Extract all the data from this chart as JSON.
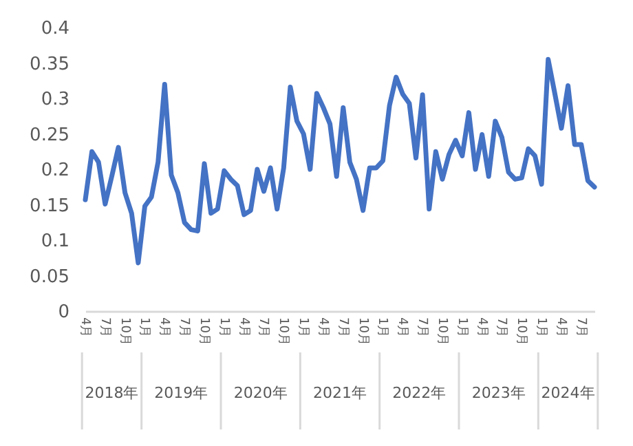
{
  "chart_data": {
    "type": "line",
    "x": [
      "2018-04",
      "2018-05",
      "2018-06",
      "2018-07",
      "2018-08",
      "2018-09",
      "2018-10",
      "2018-11",
      "2018-12",
      "2019-01",
      "2019-02",
      "2019-03",
      "2019-04",
      "2019-05",
      "2019-06",
      "2019-07",
      "2019-08",
      "2019-09",
      "2019-10",
      "2019-11",
      "2019-12",
      "2020-01",
      "2020-02",
      "2020-03",
      "2020-04",
      "2020-05",
      "2020-06",
      "2020-07",
      "2020-08",
      "2020-09",
      "2020-10",
      "2020-11",
      "2020-12",
      "2021-01",
      "2021-02",
      "2021-03",
      "2021-04",
      "2021-05",
      "2021-06",
      "2021-07",
      "2021-08",
      "2021-09",
      "2021-10",
      "2021-11",
      "2021-12",
      "2022-01",
      "2022-02",
      "2022-03",
      "2022-04",
      "2022-05",
      "2022-06",
      "2022-07",
      "2022-08",
      "2022-09",
      "2022-10",
      "2022-11",
      "2022-12",
      "2023-01",
      "2023-02",
      "2023-03",
      "2023-04",
      "2023-05",
      "2023-06",
      "2023-07",
      "2023-08",
      "2023-09",
      "2023-10",
      "2023-11",
      "2023-12",
      "2024-01",
      "2024-02",
      "2024-03",
      "2024-04",
      "2024-05",
      "2024-06",
      "2024-07",
      "2024-08",
      "2024-09"
    ],
    "series": [
      {
        "color": "#4472c4",
        "values": [
          0.157,
          0.225,
          0.21,
          0.151,
          0.19,
          0.231,
          0.167,
          0.138,
          0.068,
          0.148,
          0.161,
          0.21,
          0.32,
          0.192,
          0.167,
          0.125,
          0.115,
          0.113,
          0.208,
          0.138,
          0.144,
          0.198,
          0.186,
          0.177,
          0.136,
          0.142,
          0.2,
          0.169,
          0.202,
          0.144,
          0.202,
          0.316,
          0.268,
          0.25,
          0.2,
          0.307,
          0.287,
          0.264,
          0.19,
          0.287,
          0.21,
          0.186,
          0.142,
          0.202,
          0.202,
          0.212,
          0.29,
          0.33,
          0.306,
          0.293,
          0.216,
          0.305,
          0.144,
          0.225,
          0.186,
          0.221,
          0.241,
          0.219,
          0.28,
          0.2,
          0.249,
          0.19,
          0.268,
          0.245,
          0.196,
          0.186,
          0.188,
          0.229,
          0.219,
          0.179,
          0.355,
          0.307,
          0.258,
          0.318,
          0.235,
          0.235,
          0.184,
          0.175
        ]
      }
    ],
    "xticks": [
      {
        "value": "2018-04",
        "label": "4月"
      },
      {
        "value": "2018-07",
        "label": "7月"
      },
      {
        "value": "2018-10",
        "label": "10月"
      },
      {
        "value": "2019-01",
        "label": "1月"
      },
      {
        "value": "2019-04",
        "label": "4月"
      },
      {
        "value": "2019-07",
        "label": "7月"
      },
      {
        "value": "2019-10",
        "label": "10月"
      },
      {
        "value": "2020-01",
        "label": "1月"
      },
      {
        "value": "2020-04",
        "label": "4月"
      },
      {
        "value": "2020-07",
        "label": "7月"
      },
      {
        "value": "2020-10",
        "label": "10月"
      },
      {
        "value": "2021-01",
        "label": "1月"
      },
      {
        "value": "2021-04",
        "label": "4月"
      },
      {
        "value": "2021-07",
        "label": "7月"
      },
      {
        "value": "2021-10",
        "label": "10月"
      },
      {
        "value": "2022-01",
        "label": "1月"
      },
      {
        "value": "2022-04",
        "label": "4月"
      },
      {
        "value": "2022-07",
        "label": "7月"
      },
      {
        "value": "2022-10",
        "label": "10月"
      },
      {
        "value": "2023-01",
        "label": "1月"
      },
      {
        "value": "2023-04",
        "label": "4月"
      },
      {
        "value": "2023-07",
        "label": "7月"
      },
      {
        "value": "2023-10",
        "label": "10月"
      },
      {
        "value": "2024-01",
        "label": "1月"
      },
      {
        "value": "2024-04",
        "label": "4月"
      },
      {
        "value": "2024-07",
        "label": "7月"
      }
    ],
    "ylim": [
      0,
      0.4
    ],
    "yticks": [
      0,
      0.05,
      0.1,
      0.15,
      0.2,
      0.25,
      0.3,
      0.35,
      0.4
    ],
    "annotations": [
      "2018年",
      "2019年",
      "2020年",
      "2021年",
      "2022年",
      "2023年",
      "2024年"
    ],
    "xlim": [
      "2018-04",
      "2024-09"
    ],
    "grid": false
  }
}
